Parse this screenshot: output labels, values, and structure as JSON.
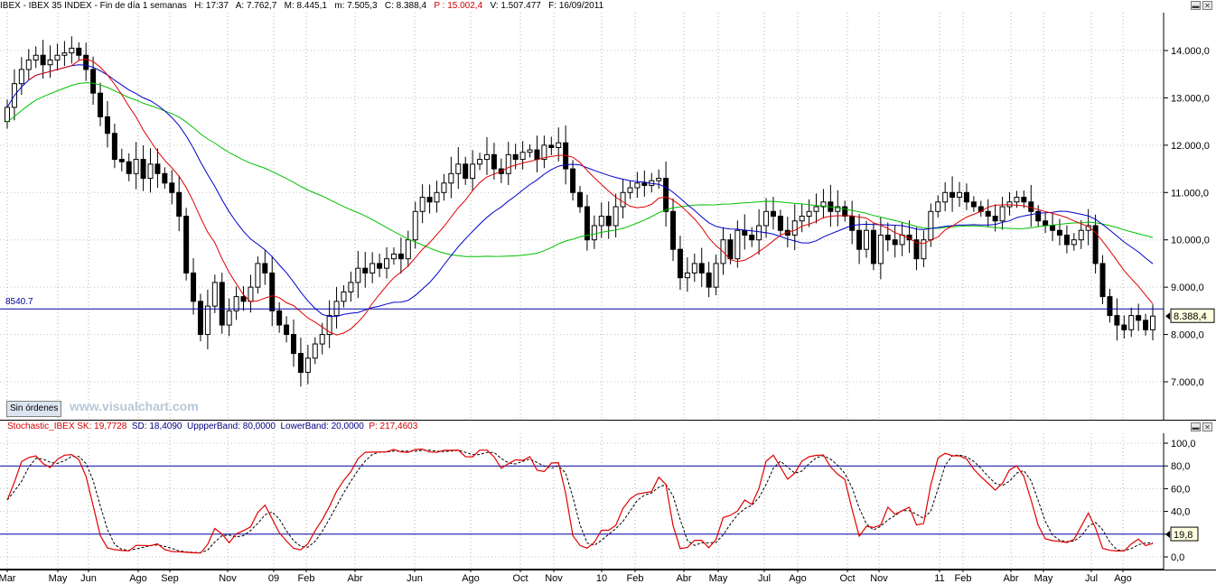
{
  "header": {
    "symbol": "IBEX - IBEX 35 INDEX - Fin de día 1 semanas",
    "h": "H: 17:37",
    "a": "A: 7.762,7",
    "m": "M: 8.445,1",
    "mm": "m: 7.505,3",
    "c": "C: 8.388,4",
    "p": "P : 15.002,4",
    "v": "V: 1.507.477",
    "f": "F: 16/09/2011"
  },
  "price_panel": {
    "y_ticks": [
      "14.000,0",
      "13.000,0",
      "12.000,0",
      "11.000,0",
      "10.000,0",
      "9.000,0",
      "8.000,0",
      "7.000,0"
    ],
    "hline_label": "8540.7",
    "last_price_label": "8.388,4",
    "button_label": "Sin órdenes",
    "watermark": "www.visualchart.com"
  },
  "stoch_panel": {
    "name": "Stochastic_IBEX",
    "sk": "SK: 19,7728",
    "sd": "SD: 18,4090",
    "upper": "UppperBand: 80,0000",
    "lower": "LowerBand: 20,0000",
    "p": "P: 217,4603",
    "y_ticks": [
      "100,0",
      "80,0",
      "60,0",
      "40,0",
      "20,0",
      "0,0"
    ],
    "last_label": "19,8"
  },
  "x_axis": [
    "Mar",
    "May",
    "Jun",
    "Ago",
    "Sep",
    "Nov",
    "09",
    "Feb",
    "Abr",
    "Jun",
    "Ago",
    "Oct",
    "Nov",
    "10",
    "Feb",
    "Abr",
    "May",
    "Jul",
    "Ago",
    "Oct",
    "Nov",
    "11",
    "Feb",
    "Abr",
    "May",
    "Jul",
    "Ago"
  ],
  "colors": {
    "ma_short": "#e00000",
    "ma_mid": "#0000c8",
    "ma_long": "#00c000",
    "hline": "#0000a0",
    "stoch_k": "#e00000",
    "stoch_d": "#000000"
  },
  "chart_data": [
    {
      "type": "candlestick",
      "title": "IBEX - IBEX 35 INDEX - Fin de día 1 semanas",
      "ylim": [
        6500,
        14700
      ],
      "hline": 8540.7,
      "closes": [
        12800,
        13300,
        13600,
        13800,
        13900,
        13700,
        13800,
        13900,
        13950,
        14050,
        13900,
        13600,
        13100,
        12600,
        12250,
        11700,
        11650,
        11400,
        11700,
        11300,
        11600,
        11400,
        11200,
        11000,
        10500,
        9300,
        8700,
        8000,
        8600,
        9100,
        8200,
        8500,
        8800,
        8700,
        9000,
        9500,
        9300,
        8500,
        8200,
        8000,
        7600,
        7200,
        7500,
        7800,
        8000,
        8400,
        8700,
        8900,
        9100,
        9400,
        9300,
        9500,
        9400,
        9600,
        9700,
        9600,
        10000,
        10600,
        10900,
        10800,
        11000,
        11200,
        11400,
        11600,
        11300,
        11600,
        11700,
        11800,
        11500,
        11400,
        11800,
        11700,
        11850,
        11900,
        11700,
        12000,
        11950,
        12050,
        11500,
        11000,
        10700,
        10000,
        10300,
        10500,
        10300,
        10700,
        11000,
        11100,
        11200,
        11150,
        11250,
        11300,
        10600,
        9800,
        9200,
        9300,
        9500,
        9300,
        9000,
        9500,
        10000,
        9600,
        10200,
        10100,
        10000,
        10300,
        10600,
        10500,
        10200,
        10100,
        10400,
        10500,
        10600,
        10700,
        10800,
        10600,
        10700,
        10500,
        10200,
        9800,
        10200,
        9500,
        10100,
        10000,
        9900,
        10100,
        10000,
        9600,
        10000,
        10600,
        10800,
        11000,
        10900,
        11000,
        10800,
        10700,
        10600,
        10500,
        10400,
        10700,
        10800,
        10900,
        10800,
        10600,
        10400,
        10300,
        10200,
        10100,
        9900,
        10000,
        10200,
        10300,
        9500,
        8800,
        8400,
        8200,
        8100,
        8400,
        8300,
        8100,
        8388
      ]
    },
    {
      "type": "line",
      "title": "Stochastic_IBEX",
      "ylim": [
        -7,
        107
      ],
      "upper_band": 80,
      "lower_band": 20
    }
  ]
}
